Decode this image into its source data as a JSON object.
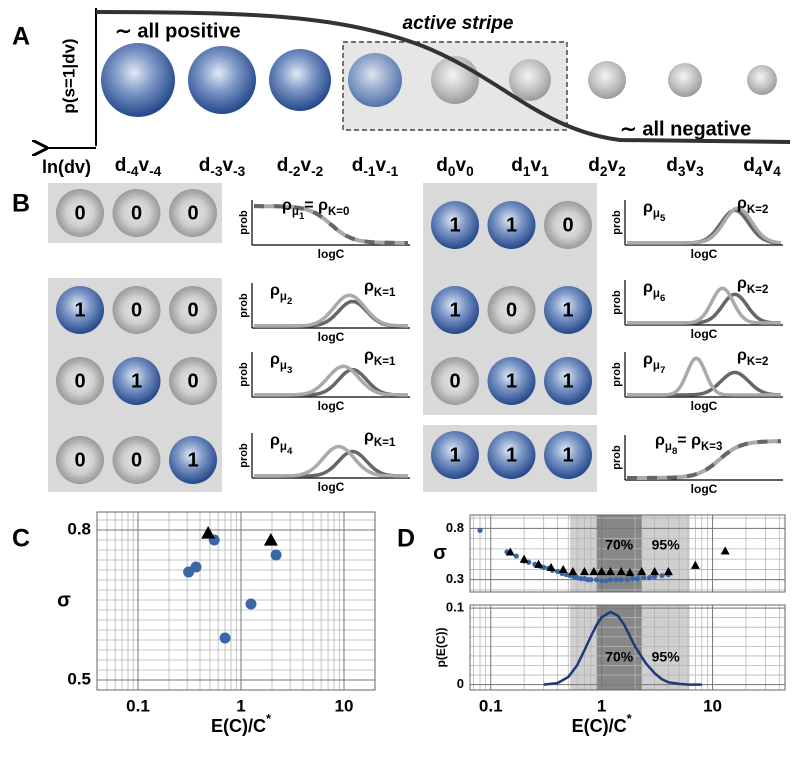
{
  "panel_labels": [
    "A",
    "B",
    "C",
    "D"
  ],
  "panel_a": {
    "y_label": "p(s=1|dv)",
    "x_label": "ln(dv)",
    "left_note": "∼ all positive",
    "right_note": "∼ all negative",
    "stripe_label": "active stripe",
    "sites": [
      [
        {
          "base": "d",
          "sub": "-4"
        },
        {
          "base": "v",
          "sub": "-4"
        }
      ],
      [
        {
          "base": "d",
          "sub": "-3"
        },
        {
          "base": "v",
          "sub": "-3"
        }
      ],
      [
        {
          "base": "d",
          "sub": "-2"
        },
        {
          "base": "v",
          "sub": "-2"
        }
      ],
      [
        {
          "base": "d",
          "sub": "-1"
        },
        {
          "base": "v",
          "sub": "-1"
        }
      ],
      [
        {
          "base": "d",
          "sub": "0"
        },
        {
          "base": "v",
          "sub": "0"
        }
      ],
      [
        {
          "base": "d",
          "sub": "1"
        },
        {
          "base": "v",
          "sub": "1"
        }
      ],
      [
        {
          "base": "d",
          "sub": "2"
        },
        {
          "base": "v",
          "sub": "2"
        }
      ],
      [
        {
          "base": "d",
          "sub": "3"
        },
        {
          "base": "v",
          "sub": "3"
        }
      ],
      [
        {
          "base": "d",
          "sub": "4"
        },
        {
          "base": "v",
          "sub": "4"
        }
      ]
    ]
  },
  "panel_b": {
    "prob_label": "prob",
    "logc_label": "logC",
    "groups": [
      {
        "rows": [
          {
            "states": [
              0,
              0,
              0
            ],
            "labels": [
              [
                {
                  "base": "ρ",
                  "sub": "μ",
                  "subsub": "1"
                },
                {
                  "base": "= ρ",
                  "sub": "K=0"
                }
              ]
            ]
          }
        ]
      },
      {
        "rows": [
          {
            "states": [
              1,
              0,
              0
            ],
            "labels": [
              [
                {
                  "base": "ρ",
                  "sub": "μ",
                  "subsub": "2"
                }
              ],
              [
                {
                  "base": "ρ",
                  "sub": "K=1"
                }
              ]
            ]
          },
          {
            "states": [
              0,
              1,
              0
            ],
            "labels": [
              [
                {
                  "base": "ρ",
                  "sub": "μ",
                  "subsub": "3"
                }
              ],
              [
                {
                  "base": "ρ",
                  "sub": "K=1"
                }
              ]
            ]
          },
          {
            "states": [
              0,
              0,
              1
            ],
            "labels": [
              [
                {
                  "base": "ρ",
                  "sub": "μ",
                  "subsub": "4"
                }
              ],
              [
                {
                  "base": "ρ",
                  "sub": "K=1"
                }
              ]
            ]
          }
        ]
      },
      {
        "rows": [
          {
            "states": [
              1,
              1,
              0
            ],
            "labels": [
              [
                {
                  "base": "ρ",
                  "sub": "μ",
                  "subsub": "5"
                }
              ],
              [
                {
                  "base": "ρ",
                  "sub": "K=2"
                }
              ]
            ]
          },
          {
            "states": [
              1,
              0,
              1
            ],
            "labels": [
              [
                {
                  "base": "ρ",
                  "sub": "μ",
                  "subsub": "6"
                }
              ],
              [
                {
                  "base": "ρ",
                  "sub": "K=2"
                }
              ]
            ]
          },
          {
            "states": [
              0,
              1,
              1
            ],
            "labels": [
              [
                {
                  "base": "ρ",
                  "sub": "μ",
                  "subsub": "7"
                }
              ],
              [
                {
                  "base": "ρ",
                  "sub": "K=2"
                }
              ]
            ]
          }
        ]
      },
      {
        "rows": [
          {
            "states": [
              1,
              1,
              1
            ],
            "labels": [
              [
                {
                  "base": "ρ",
                  "sub": "μ",
                  "subsub": "8"
                },
                {
                  "base": "= ρ",
                  "sub": "K=3"
                }
              ]
            ]
          }
        ]
      }
    ]
  },
  "chart_data": [
    {
      "type": "scatter",
      "xscale": "log",
      "xlim": [
        0.04,
        20
      ],
      "xticks": [
        0.1,
        1,
        10
      ],
      "ylim": [
        0.48,
        0.836
      ],
      "yticks": [
        0.5,
        0.8
      ],
      "grid": true,
      "ylabel": "σ",
      "xlabel": [
        {
          "base": "E(C)/C",
          "sup": "*"
        }
      ],
      "series": [
        {
          "marker": "circle",
          "color": "#3b67a6",
          "x": [
            0.31,
            0.366,
            0.55,
            0.7,
            1.25,
            2.19
          ],
          "values": [
            0.716,
            0.726,
            0.78,
            0.584,
            0.652,
            0.75
          ]
        },
        {
          "marker": "triangle",
          "color": "#000000",
          "x": [
            0.48,
            1.95
          ],
          "values": [
            0.794,
            0.78
          ]
        }
      ]
    },
    {
      "type": "scatter",
      "xscale": "log",
      "xlim": [
        0.065,
        45
      ],
      "xticks": [
        0.1,
        1,
        10
      ],
      "show_xtick_labels": false,
      "ylim": [
        0.18,
        0.93
      ],
      "yticks": [
        0.3,
        0.8
      ],
      "grid": true,
      "ylabel": "σ",
      "bands": [
        {
          "label": "70%",
          "range": [
            0.9,
            2.3
          ],
          "color": "#878787"
        },
        {
          "label": "95%",
          "range": [
            0.52,
            6.2
          ],
          "color": "#cfcfcf"
        }
      ],
      "series": [
        {
          "marker": "circle",
          "color": "#3b67a6",
          "x": [
            0.08,
            0.14,
            0.15,
            0.17,
            0.2,
            0.22,
            0.25,
            0.28,
            0.3,
            0.33,
            0.36,
            0.4,
            0.44,
            0.48,
            0.52,
            0.56,
            0.6,
            0.65,
            0.7,
            0.75,
            0.8,
            0.9,
            1.0,
            1.1,
            1.2,
            1.35,
            1.5,
            1.7,
            1.9,
            2.1,
            2.4,
            2.7,
            3.0,
            3.5,
            4.0
          ],
          "values": [
            0.78,
            0.57,
            0.56,
            0.53,
            0.48,
            0.47,
            0.45,
            0.43,
            0.42,
            0.41,
            0.39,
            0.38,
            0.36,
            0.35,
            0.34,
            0.33,
            0.32,
            0.31,
            0.31,
            0.3,
            0.3,
            0.3,
            0.29,
            0.29,
            0.3,
            0.3,
            0.3,
            0.3,
            0.31,
            0.31,
            0.32,
            0.32,
            0.33,
            0.34,
            0.35
          ]
        },
        {
          "marker": "triangle",
          "color": "#000000",
          "x": [
            0.15,
            0.2,
            0.27,
            0.35,
            0.45,
            0.55,
            0.7,
            0.85,
            1.0,
            1.2,
            1.5,
            1.8,
            2.3,
            3.0,
            4.0,
            7.0,
            13.0
          ],
          "values": [
            0.57,
            0.5,
            0.45,
            0.42,
            0.4,
            0.38,
            0.38,
            0.38,
            0.38,
            0.38,
            0.38,
            0.37,
            0.38,
            0.38,
            0.38,
            0.44,
            0.58
          ]
        }
      ]
    },
    {
      "type": "line",
      "xscale": "log",
      "xlim": [
        0.065,
        45
      ],
      "xticks": [
        0.1,
        1,
        10
      ],
      "ylim": [
        -0.007,
        0.104
      ],
      "yticks": [
        0,
        0.1
      ],
      "grid": true,
      "ylabel": "p(E(C))",
      "xlabel": [
        {
          "base": "E(C)/C",
          "sup": "*"
        }
      ],
      "bands": [
        {
          "label": "70%",
          "range": [
            0.9,
            2.3
          ],
          "color": "#878787"
        },
        {
          "label": "95%",
          "range": [
            0.52,
            6.2
          ],
          "color": "#cfcfcf"
        }
      ],
      "series": [
        {
          "color": "#1d3a78",
          "x": [
            0.3,
            0.4,
            0.5,
            0.6,
            0.7,
            0.8,
            0.9,
            1.0,
            1.2,
            1.4,
            1.6,
            1.8,
            2.0,
            2.5,
            3.0,
            3.5,
            4.0,
            5.0,
            6.0,
            8.0
          ],
          "values": [
            0,
            0.002,
            0.01,
            0.025,
            0.045,
            0.063,
            0.078,
            0.088,
            0.095,
            0.09,
            0.078,
            0.063,
            0.05,
            0.028,
            0.015,
            0.007,
            0.003,
            0.001,
            0,
            0
          ]
        }
      ]
    }
  ]
}
